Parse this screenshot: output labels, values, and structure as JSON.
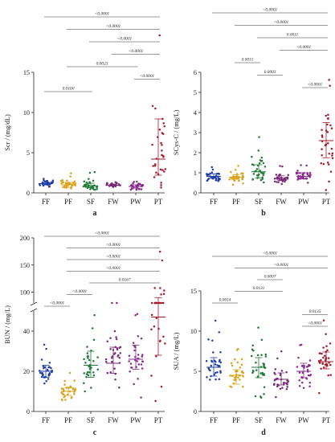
{
  "chart_data": [
    {
      "id": "a",
      "type": "scatter",
      "panel_letter": "a",
      "title": "",
      "xlabel": "",
      "ylabel": "Scr / (mg/dL)",
      "categories": [
        "FF",
        "PF",
        "SF",
        "FW",
        "PW",
        "PT"
      ],
      "ylim": [
        0,
        15
      ],
      "yticks": [
        0,
        5,
        10,
        15
      ],
      "grid": false,
      "legend": "none",
      "colors": [
        "#1f3fa8",
        "#d9a21b",
        "#1e7a34",
        "#7a2a78",
        "#8a2a8c",
        "#a31a2e"
      ],
      "summary": [
        {
          "center": 1.15,
          "low": 1.0,
          "high": 1.3
        },
        {
          "center": 1.0,
          "low": 0.7,
          "high": 1.3
        },
        {
          "center": 0.85,
          "low": 0.65,
          "high": 1.2
        },
        {
          "center": 0.95,
          "low": 0.85,
          "high": 1.05
        },
        {
          "center": 0.8,
          "low": 0.6,
          "high": 1.0
        },
        {
          "center": 4.2,
          "low": 2.2,
          "high": 9.2
        }
      ],
      "comparisons": [
        {
          "from": "FF",
          "to": "PT",
          "p": "<0.0001"
        },
        {
          "from": "PF",
          "to": "PT",
          "p": "<0.0001"
        },
        {
          "from": "SF",
          "to": "PT",
          "p": "<0.0001"
        },
        {
          "from": "FW",
          "to": "PT",
          "p": "<0.0001"
        },
        {
          "from": "PF",
          "to": "PW",
          "p": "0.0023"
        },
        {
          "from": "PW",
          "to": "PT",
          "p": "<0.0001"
        },
        {
          "from": "FF",
          "to": "SF",
          "p": "0.0160"
        }
      ]
    },
    {
      "id": "b",
      "type": "scatter",
      "panel_letter": "b",
      "title": "",
      "xlabel": "",
      "ylabel": "SCys-C / (mg/L)",
      "categories": [
        "FF",
        "PF",
        "SF",
        "FW",
        "PW",
        "PT"
      ],
      "ylim": [
        0,
        6
      ],
      "yticks": [
        0,
        1,
        2,
        3,
        4,
        5,
        6
      ],
      "grid": false,
      "legend": "none",
      "colors": [
        "#1f3fa8",
        "#d9a21b",
        "#1e7a34",
        "#7a2a78",
        "#8a2a8c",
        "#a31a2e"
      ],
      "summary": [
        {
          "center": 0.82,
          "low": 0.72,
          "high": 0.95
        },
        {
          "center": 0.78,
          "low": 0.68,
          "high": 0.9
        },
        {
          "center": 1.05,
          "low": 0.75,
          "high": 1.4
        },
        {
          "center": 0.72,
          "low": 0.62,
          "high": 0.85
        },
        {
          "center": 0.82,
          "low": 0.7,
          "high": 1.0
        },
        {
          "center": 2.6,
          "low": 1.75,
          "high": 3.5
        }
      ],
      "comparisons": [
        {
          "from": "FF",
          "to": "PT",
          "p": "<0.0001"
        },
        {
          "from": "PF",
          "to": "PT",
          "p": "<0.0001"
        },
        {
          "from": "SF",
          "to": "PT",
          "p": "0.0011"
        },
        {
          "from": "FW",
          "to": "PT",
          "p": "<0.0001"
        },
        {
          "from": "PF",
          "to": "SF",
          "p": "0.0015"
        },
        {
          "from": "SF",
          "to": "FW",
          "p": "0.0003"
        },
        {
          "from": "PW",
          "to": "PT",
          "p": "<0.0001"
        }
      ]
    },
    {
      "id": "c",
      "type": "scatter",
      "panel_letter": "c",
      "title": "",
      "xlabel": "",
      "ylabel": "BUN / (mg/L)",
      "categories": [
        "FF",
        "PF",
        "SF",
        "FW",
        "PW",
        "PT"
      ],
      "axis_break": true,
      "lower_ylim": [
        0,
        50
      ],
      "lower_yticks": [
        0,
        20,
        40
      ],
      "upper_ylim": [
        80,
        200
      ],
      "upper_yticks": [
        100,
        150,
        200
      ],
      "grid": false,
      "legend": "none",
      "colors": [
        "#1f3fa8",
        "#d9a21b",
        "#1e7a34",
        "#7a2a78",
        "#8a2a8c",
        "#a31a2e"
      ],
      "summary": [
        {
          "center": 20,
          "low": 17,
          "high": 23
        },
        {
          "center": 10,
          "low": 8,
          "high": 12
        },
        {
          "center": 23,
          "low": 17,
          "high": 30
        },
        {
          "center": 24,
          "low": 19,
          "high": 32
        },
        {
          "center": 26,
          "low": 21,
          "high": 33
        },
        {
          "center": 47,
          "low": 28,
          "high": 90
        }
      ],
      "comparisons": [
        {
          "from": "FF",
          "to": "PT",
          "p": "<0.0001"
        },
        {
          "from": "PF",
          "to": "PT",
          "p": "<0.0001"
        },
        {
          "from": "PF",
          "to": "PT",
          "p": "<0.0001"
        },
        {
          "from": "PF",
          "to": "PT",
          "p": "<0.0001"
        },
        {
          "from": "SF",
          "to": "PT",
          "p": "0.0167"
        },
        {
          "from": "PF",
          "to": "SF",
          "p": "<0.0001"
        },
        {
          "from": "FF",
          "to": "PF",
          "p": "<0.0001"
        }
      ]
    },
    {
      "id": "d",
      "type": "scatter",
      "panel_letter": "d",
      "title": "",
      "xlabel": "",
      "ylabel": "SUA / (mg/L)",
      "categories": [
        "FF",
        "PF",
        "SF",
        "FW",
        "PW",
        "PT"
      ],
      "ylim": [
        0,
        15
      ],
      "yticks": [
        0,
        5,
        10,
        15
      ],
      "grid": false,
      "legend": "none",
      "colors": [
        "#1f3fa8",
        "#d9a21b",
        "#1e7a34",
        "#7a2a78",
        "#8a2a8c",
        "#a31a2e"
      ],
      "summary": [
        {
          "center": 5.5,
          "low": 4.4,
          "high": 6.7
        },
        {
          "center": 4.5,
          "low": 3.4,
          "high": 5.2
        },
        {
          "center": 5.5,
          "low": 4.2,
          "high": 6.7
        },
        {
          "center": 4.0,
          "low": 3.3,
          "high": 4.8
        },
        {
          "center": 5.0,
          "low": 4.2,
          "high": 6.0
        },
        {
          "center": 6.2,
          "low": 5.3,
          "high": 7.4
        }
      ],
      "comparisons": [
        {
          "from": "FF",
          "to": "PT",
          "p": "<0.0001"
        },
        {
          "from": "PF",
          "to": "PT",
          "p": "<0.0001"
        },
        {
          "from": "SF",
          "to": "FW",
          "p": "0.0007"
        },
        {
          "from": "PF",
          "to": "FW",
          "p": "0.0131"
        },
        {
          "from": "FF",
          "to": "PF",
          "p": "0.0014"
        },
        {
          "from": "PW",
          "to": "PT",
          "p": "0.0135"
        },
        {
          "from": "PW",
          "to": "PT",
          "p": "<0.0001"
        }
      ]
    }
  ]
}
